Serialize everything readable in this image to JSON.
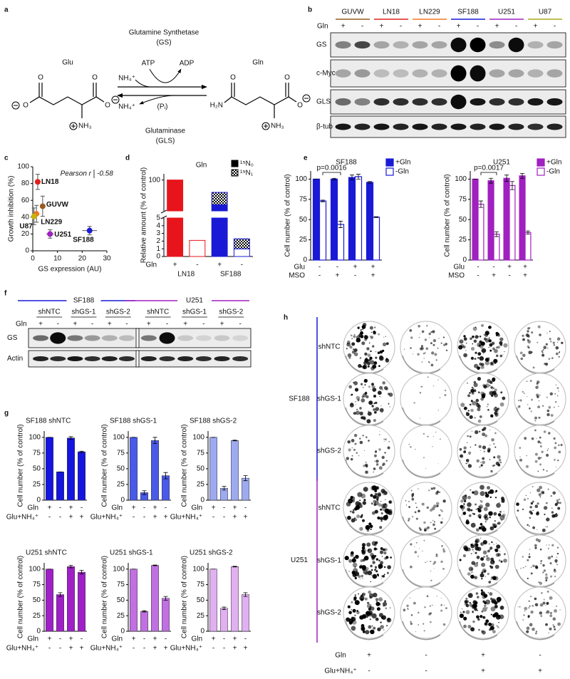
{
  "panel_letters": [
    "a",
    "b",
    "c",
    "d",
    "e",
    "f",
    "g",
    "h"
  ],
  "panel_a": {
    "enzyme_top": "Glutamine Synthetase",
    "enzyme_top_abbr": "(GS)",
    "enzyme_bottom": "Glutaminase",
    "enzyme_bottom_abbr": "(GLS)",
    "left_name": "Glu",
    "right_name": "Gln",
    "atp": "ATP",
    "adp": "ADP",
    "nh4_in": "NH₄⁺",
    "nh4_out": "NH₄⁺",
    "pi": "(Pᵢ)",
    "glu_atoms": [
      "O",
      "O",
      "O",
      "O",
      "NH₃"
    ],
    "gln_atoms": [
      "H₂N",
      "O",
      "O",
      "O",
      "NH₃"
    ]
  },
  "panel_b": {
    "lines": [
      {
        "name": "GUVW",
        "color": "#9a5a1e"
      },
      {
        "name": "LN18",
        "color": "#e0201c"
      },
      {
        "name": "LN229",
        "color": "#f07820"
      },
      {
        "name": "SF188",
        "color": "#1a1ad6"
      },
      {
        "name": "U251",
        "color": "#a020c0"
      },
      {
        "name": "U87",
        "color": "#a8a820"
      }
    ],
    "row_label": "Gln",
    "lanes": [
      "+",
      "-",
      "+",
      "-",
      "+",
      "-",
      "+",
      "-",
      "+",
      "-",
      "+",
      "-"
    ],
    "blots": [
      "GS",
      "c-Myc",
      "GLS",
      "β-tub"
    ]
  },
  "panel_f": {
    "groups": [
      {
        "name": "SF188",
        "color": "#1a1ad6"
      },
      {
        "name": "U251",
        "color": "#a020c0"
      }
    ],
    "shrna": [
      "shNTC",
      "shGS-1",
      "shGS-2",
      "shNTC",
      "shGS-1",
      "shGS-2"
    ],
    "row_label": "Gln",
    "lanes": [
      "+",
      "-",
      "+",
      "-",
      "+",
      "-",
      "+",
      "-",
      "+",
      "-",
      "+",
      "-"
    ],
    "blots": [
      "GS",
      "Actin"
    ]
  },
  "panel_h": {
    "groups": [
      {
        "name": "SF188",
        "color": "#1a1ad6",
        "rows": [
          "shNTC",
          "shGS-1",
          "shGS-2"
        ]
      },
      {
        "name": "U251",
        "color": "#a020c0",
        "rows": [
          "shNTC",
          "shGS-1",
          "shGS-2"
        ]
      }
    ],
    "conditions": [
      {
        "label": "Gln",
        "values": [
          "+",
          "-",
          "+",
          "-"
        ]
      },
      {
        "label": "Glu+NH₄⁺",
        "values": [
          "-",
          "-",
          "+",
          "+"
        ]
      }
    ]
  },
  "chart_data": [
    {
      "type": "scatter",
      "xlabel": "GS expression (AU)",
      "ylabel": "Growth inhibition (%)",
      "annotation": "Pearson r",
      "annotation_value": "-0.58",
      "xlim": [
        0,
        30
      ],
      "xticks": [
        0,
        10,
        20,
        30
      ],
      "ylim": [
        0,
        100
      ],
      "yticks": [
        0,
        20,
        40,
        60,
        80,
        100
      ],
      "series": [
        {
          "name": "LN18",
          "color": "#e0201c",
          "x": [
            2
          ],
          "y": [
            82
          ],
          "xerr": [
            1
          ],
          "yerr": [
            9
          ]
        },
        {
          "name": "GUVW",
          "color": "#9a5a1e",
          "x": [
            4
          ],
          "y": [
            53
          ],
          "xerr": [
            1
          ],
          "yerr": [
            12
          ]
        },
        {
          "name": "LN229",
          "color": "#f07820",
          "x": [
            1.5
          ],
          "y": [
            44
          ],
          "xerr": [
            1
          ],
          "yerr": [
            10
          ]
        },
        {
          "name": "U87",
          "color": "#c8b400",
          "x": [
            0.5
          ],
          "y": [
            41
          ],
          "xerr": [
            0.5
          ],
          "yerr": [
            10
          ]
        },
        {
          "name": "U251",
          "color": "#a020c0",
          "x": [
            7
          ],
          "y": [
            20
          ],
          "xerr": [
            1.5
          ],
          "yerr": [
            5
          ]
        },
        {
          "name": "SF188",
          "color": "#1a1ad6",
          "x": [
            23
          ],
          "y": [
            24
          ],
          "xerr": [
            3
          ],
          "yerr": [
            5
          ]
        }
      ]
    },
    {
      "type": "broken_bar",
      "title": "Gln",
      "ylabel": "Relative amount (% of control)",
      "row_label": "Gln",
      "categories": [
        "+",
        "-",
        "+",
        "-"
      ],
      "groups": [
        {
          "name": "LN18",
          "color": "#e8141c"
        },
        {
          "name": "SF188",
          "color": "#1a1ad6"
        }
      ],
      "ylim": [
        0,
        105
      ],
      "ybreak": [
        5,
        75
      ],
      "yticks": [
        0,
        1,
        2,
        3,
        4,
        5,
        100
      ],
      "series": [
        {
          "name": "¹⁵N₀",
          "values": [
            100,
            2.1,
            80,
            1.0
          ]
        },
        {
          "name": "¹⁵N₁",
          "values": [
            null,
            null,
            10,
            1.3
          ]
        }
      ]
    },
    {
      "type": "grouped_bar",
      "title": "SF188",
      "color": "#1a1ad6",
      "ylabel": "Cell number (% of control)",
      "annotation": "p=0.0016",
      "ylim": [
        0,
        110
      ],
      "yticks": [
        0,
        25,
        50,
        75,
        100
      ],
      "rows": [
        {
          "label": "Glu",
          "values": [
            "-",
            "-",
            "+",
            "+"
          ]
        },
        {
          "label": "MSO",
          "values": [
            "-",
            "+",
            "-",
            "+"
          ]
        }
      ],
      "series": [
        {
          "name": "+Gln",
          "values": [
            100,
            100,
            102,
            96
          ],
          "errors": [
            0,
            1,
            3,
            1
          ]
        },
        {
          "name": "-Gln",
          "values": [
            73,
            44,
            103,
            53
          ],
          "errors": [
            1,
            4,
            3,
            0.5
          ]
        }
      ]
    },
    {
      "type": "grouped_bar",
      "title": "U251",
      "color": "#a020c0",
      "ylabel": "Cell number (% of control)",
      "annotation": "p=0.0017",
      "ylim": [
        0,
        110
      ],
      "yticks": [
        0,
        25,
        50,
        75,
        100
      ],
      "rows": [
        {
          "label": "Glu",
          "values": [
            "-",
            "-",
            "+",
            "+"
          ]
        },
        {
          "label": "MSO",
          "values": [
            "-",
            "+",
            "-",
            "+"
          ]
        }
      ],
      "series": [
        {
          "name": "+Gln",
          "values": [
            100,
            98,
            101,
            104
          ],
          "errors": [
            0,
            3,
            4,
            3
          ]
        },
        {
          "name": "-Gln",
          "values": [
            69,
            32,
            92,
            34
          ],
          "errors": [
            4,
            3,
            5,
            2
          ]
        }
      ]
    },
    {
      "type": "bar",
      "title": "SF188 shNTC",
      "color": "#1515e0",
      "ylabel": "Cell number (% of control)",
      "ylim": [
        0,
        110
      ],
      "yticks": [
        0,
        25,
        50,
        75,
        100
      ],
      "rows": [
        {
          "label": "Gln",
          "values": [
            "+",
            "-",
            "+",
            "-"
          ]
        },
        {
          "label": "Glu+NH₄⁺",
          "values": [
            "-",
            "-",
            "+",
            "+"
          ]
        }
      ],
      "values": [
        100,
        45,
        99,
        77
      ],
      "errors": [
        0,
        0,
        2,
        1
      ]
    },
    {
      "type": "bar",
      "title": "SF188 shGS-1",
      "color": "#4a5ae8",
      "ylabel": "Cell number (% of control)",
      "ylim": [
        0,
        110
      ],
      "yticks": [
        0,
        25,
        50,
        75,
        100
      ],
      "rows": [
        {
          "label": "Gln",
          "values": [
            "+",
            "-",
            "+",
            "-"
          ]
        },
        {
          "label": "Glu+NH₄⁺",
          "values": [
            "-",
            "-",
            "+",
            "+"
          ]
        }
      ],
      "values": [
        100,
        12,
        95,
        39
      ],
      "errors": [
        0,
        3,
        5,
        5
      ]
    },
    {
      "type": "bar",
      "title": "SF188 shGS-2",
      "color": "#9eaaf0",
      "ylabel": "Cell number (% of control)",
      "ylim": [
        0,
        110
      ],
      "yticks": [
        0,
        25,
        50,
        75,
        100
      ],
      "rows": [
        {
          "label": "Gln",
          "values": [
            "+",
            "-",
            "+",
            "-"
          ]
        },
        {
          "label": "Glu+NH₄⁺",
          "values": [
            "-",
            "-",
            "+",
            "+"
          ]
        }
      ],
      "values": [
        100,
        19,
        95,
        35
      ],
      "errors": [
        0,
        3,
        0.5,
        4
      ]
    },
    {
      "type": "bar",
      "title": "U251 shNTC",
      "color": "#a020c8",
      "ylabel": "Cell number (% of control)",
      "ylim": [
        0,
        110
      ],
      "yticks": [
        0,
        25,
        50,
        75,
        100
      ],
      "rows": [
        {
          "label": "Gln",
          "values": [
            "+",
            "-",
            "+",
            "-"
          ]
        },
        {
          "label": "Glu+NH₄⁺",
          "values": [
            "-",
            "-",
            "+",
            "+"
          ]
        }
      ],
      "values": [
        100,
        59,
        104,
        95
      ],
      "errors": [
        0,
        3,
        2,
        3
      ]
    },
    {
      "type": "bar",
      "title": "U251 shGS-1",
      "color": "#c070e0",
      "ylabel": "Cell number (% of control)",
      "ylim": [
        0,
        110
      ],
      "yticks": [
        0,
        25,
        50,
        75,
        100
      ],
      "rows": [
        {
          "label": "Gln",
          "values": [
            "+",
            "-",
            "+",
            "-"
          ]
        },
        {
          "label": "Glu+NH₄⁺",
          "values": [
            "-",
            "-",
            "+",
            "+"
          ]
        }
      ],
      "values": [
        100,
        32,
        106,
        53
      ],
      "errors": [
        0,
        1,
        0.5,
        3
      ]
    },
    {
      "type": "bar",
      "title": "U251 shGS-2",
      "color": "#e0b0f0",
      "ylabel": "Cell number (% of control)",
      "ylim": [
        0,
        110
      ],
      "yticks": [
        0,
        25,
        50,
        75,
        100
      ],
      "rows": [
        {
          "label": "Gln",
          "values": [
            "+",
            "-",
            "+",
            "-"
          ]
        },
        {
          "label": "Glu+NH₄⁺",
          "values": [
            "-",
            "-",
            "+",
            "+"
          ]
        }
      ],
      "values": [
        100,
        37,
        104,
        59
      ],
      "errors": [
        0,
        2,
        0.5,
        3
      ]
    }
  ]
}
